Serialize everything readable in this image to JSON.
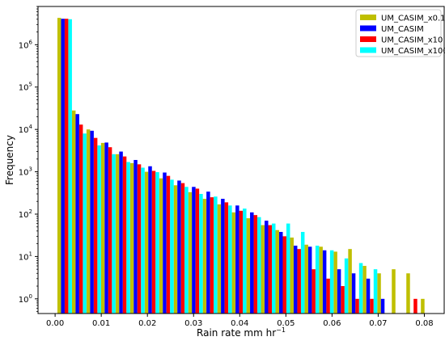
{
  "chart_data": {
    "type": "bar",
    "xlabel": "Rain rate mm hr",
    "xlabel_superscript": "−1",
    "ylabel": "Frequency",
    "yscale": "log",
    "ylim": [
      0.45,
      8000000
    ],
    "xlim": [
      -0.0037,
      0.0843
    ],
    "grid": false,
    "legend_position": "top-right",
    "xticks": [
      {
        "value": 0.0,
        "label": "0.00"
      },
      {
        "value": 0.01,
        "label": "0.01"
      },
      {
        "value": 0.02,
        "label": "0.02"
      },
      {
        "value": 0.03,
        "label": "0.03"
      },
      {
        "value": 0.04,
        "label": "0.04"
      },
      {
        "value": 0.05,
        "label": "0.05"
      },
      {
        "value": 0.06,
        "label": "0.06"
      },
      {
        "value": 0.07,
        "label": "0.07"
      },
      {
        "value": 0.08,
        "label": "0.08"
      }
    ],
    "yticks": [
      {
        "value": 1,
        "base": "10",
        "exp": "0"
      },
      {
        "value": 10,
        "base": "10",
        "exp": "1"
      },
      {
        "value": 100,
        "base": "10",
        "exp": "2"
      },
      {
        "value": 1000,
        "base": "10",
        "exp": "3"
      },
      {
        "value": 10000,
        "base": "10",
        "exp": "4"
      },
      {
        "value": 100000,
        "base": "10",
        "exp": "5"
      },
      {
        "value": 1000000,
        "base": "10",
        "exp": "6"
      }
    ],
    "bin_width": 0.00315,
    "bin_starts": [
      0.0005,
      0.00365,
      0.0068,
      0.00995,
      0.0131,
      0.01625,
      0.0194,
      0.02255,
      0.0257,
      0.02885,
      0.032,
      0.03515,
      0.0383,
      0.04145,
      0.0446,
      0.04775,
      0.0509,
      0.05405,
      0.0572,
      0.06035,
      0.0635,
      0.06665,
      0.0698,
      0.07295,
      0.0761,
      0.07925
    ],
    "series": [
      {
        "name": "UM_CASIM_x0.1",
        "color": "#bfbf00",
        "values": [
          4300000,
          28000,
          10000,
          4800,
          2600,
          1600,
          1000,
          700,
          480,
          330,
          230,
          170,
          110,
          80,
          55,
          42,
          28,
          19,
          17,
          13,
          15,
          6,
          4,
          5,
          4,
          1
        ]
      },
      {
        "name": "UM_CASIM",
        "color": "#0000ff",
        "values": [
          4100000,
          23000,
          9300,
          4900,
          3000,
          1900,
          1350,
          960,
          620,
          440,
          340,
          230,
          160,
          110,
          70,
          38,
          18,
          17,
          14,
          5,
          4,
          3,
          1,
          null,
          null,
          null
        ]
      },
      {
        "name": "UM_CASIM_x10",
        "color": "#ff0000",
        "values": [
          4100000,
          13000,
          6300,
          3800,
          2300,
          1500,
          1050,
          800,
          540,
          400,
          250,
          190,
          120,
          95,
          55,
          30,
          15,
          5,
          3,
          2,
          1,
          1,
          null,
          null,
          1,
          null
        ]
      },
      {
        "name": "UM_CASIM_x100",
        "color": "#00ffff",
        "values": [
          4000000,
          8000,
          4200,
          2600,
          1700,
          1250,
          980,
          650,
          440,
          300,
          260,
          160,
          135,
          85,
          60,
          60,
          38,
          18,
          14,
          9,
          7,
          5,
          null,
          null,
          null,
          null
        ]
      }
    ]
  }
}
